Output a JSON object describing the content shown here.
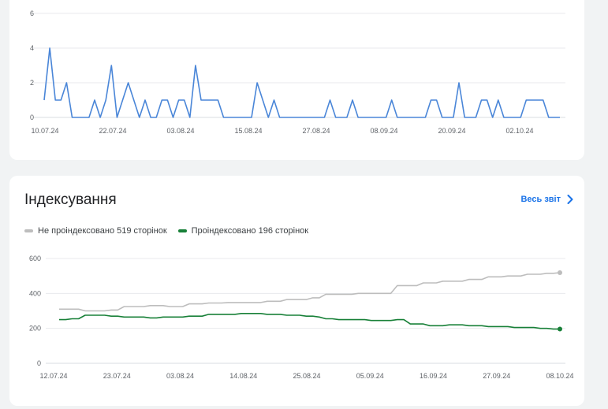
{
  "colors": {
    "clicks_line": "#4a86d8",
    "not_indexed": "#bdbdbd",
    "indexed": "#188038",
    "link": "#1a73e8",
    "grid": "#e8eaed"
  },
  "top_chart": {
    "chart_data": {
      "type": "line",
      "x_tick_labels": [
        "10.07.24",
        "22.07.24",
        "03.08.24",
        "15.08.24",
        "27.08.24",
        "08.09.24",
        "20.09.24",
        "02.10.24"
      ],
      "y_tick_labels": [
        "6",
        "4",
        "2",
        "0"
      ],
      "ylim": [
        0,
        6
      ],
      "grid": true,
      "series": [
        {
          "values": [
            1,
            4,
            1,
            1,
            2,
            0,
            0,
            0,
            0,
            1,
            0,
            1,
            3,
            0,
            1,
            2,
            1,
            0,
            1,
            0,
            0,
            1,
            1,
            0,
            1,
            1,
            0,
            3,
            1,
            1,
            1,
            1,
            0,
            0,
            0,
            0,
            0,
            0,
            2,
            1,
            0,
            1,
            0,
            0,
            0,
            0,
            0,
            0,
            0,
            0,
            0,
            1,
            0,
            0,
            0,
            1,
            0,
            0,
            0,
            0,
            0,
            0,
            1,
            0,
            0,
            0,
            0,
            0,
            0,
            1,
            1,
            0,
            0,
            0,
            2,
            0,
            0,
            0,
            1,
            1,
            0,
            1,
            0,
            0,
            0,
            0,
            1,
            1,
            1,
            1,
            0,
            0,
            0
          ]
        }
      ]
    }
  },
  "indexing": {
    "title": "Індексування",
    "report_link": "Весь звіт",
    "report_icon": "chevron-right-icon",
    "legend": [
      {
        "label": "Не проіндексовано 519 сторінок",
        "color": "#bdbdbd"
      },
      {
        "label": "Проіндексовано 196 сторінок",
        "color": "#188038"
      }
    ],
    "chart_data": {
      "type": "line",
      "x_tick_labels": [
        "12.07.24",
        "23.07.24",
        "03.08.24",
        "14.08.24",
        "25.08.24",
        "05.09.24",
        "16.09.24",
        "27.09.24",
        "08.10.24"
      ],
      "y_tick_labels": [
        "600",
        "400",
        "200",
        "0"
      ],
      "ylim": [
        0,
        600
      ],
      "grid": true,
      "series": [
        {
          "name": "Не проіндексовано 519 сторінок",
          "values": [
            310,
            310,
            310,
            310,
            300,
            300,
            300,
            300,
            305,
            305,
            325,
            325,
            325,
            325,
            330,
            330,
            330,
            325,
            325,
            325,
            340,
            340,
            340,
            345,
            345,
            345,
            348,
            348,
            348,
            348,
            348,
            348,
            355,
            355,
            355,
            365,
            365,
            365,
            365,
            375,
            375,
            395,
            395,
            395,
            395,
            395,
            400,
            400,
            400,
            400,
            400,
            400,
            445,
            445,
            445,
            445,
            460,
            460,
            460,
            470,
            470,
            470,
            470,
            480,
            480,
            480,
            495,
            495,
            495,
            500,
            500,
            500,
            510,
            510,
            510,
            515,
            515,
            519
          ]
        },
        {
          "name": "Проіндексовано 196 сторінок",
          "values": [
            250,
            250,
            255,
            255,
            275,
            275,
            275,
            275,
            270,
            270,
            265,
            265,
            265,
            265,
            260,
            260,
            265,
            265,
            265,
            265,
            270,
            270,
            270,
            280,
            280,
            280,
            280,
            280,
            285,
            285,
            285,
            285,
            280,
            280,
            280,
            275,
            275,
            275,
            270,
            270,
            265,
            255,
            255,
            250,
            250,
            250,
            250,
            250,
            245,
            245,
            245,
            245,
            250,
            250,
            225,
            225,
            225,
            215,
            215,
            215,
            220,
            220,
            220,
            215,
            215,
            215,
            210,
            210,
            210,
            210,
            205,
            205,
            205,
            205,
            200,
            200,
            196,
            196
          ]
        }
      ]
    }
  }
}
